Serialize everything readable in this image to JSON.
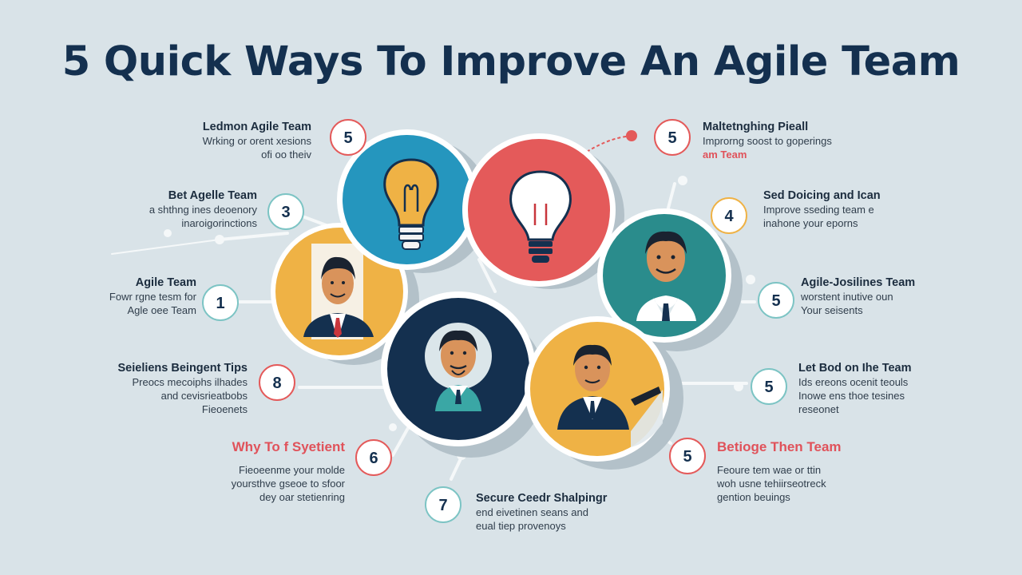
{
  "title": "5 Quick Ways To Improve An Agile Team",
  "colors": {
    "navy": "#14304f",
    "red": "#e45a5a",
    "teal": "#2a8c8c",
    "orange": "#efb245",
    "blue": "#2596be",
    "badge_border": "#7cc4c4",
    "bg": "#d9e3e8"
  },
  "badges": [
    "5",
    "5",
    "3",
    "4",
    "1",
    "5",
    "8",
    "5",
    "6",
    "5",
    "7"
  ],
  "blocks": {
    "top_left": {
      "heading": "Ledmon Agile Team",
      "lines": [
        "Wrking or orent xesions",
        "ofi oo theiv"
      ]
    },
    "top_right": {
      "heading": "Maltetnghing Pieall",
      "lines": [
        "Improrng soost to goperings"
      ],
      "accent": "am Team"
    },
    "left_2": {
      "heading": "Bet Agelle Team",
      "lines": [
        "a shthng ines deoenory",
        "inaroigorinctions"
      ]
    },
    "right_2": {
      "heading": "Sed Doicing and Ican",
      "lines": [
        "Improve sseding team e",
        "inahone your eporns"
      ]
    },
    "left_3": {
      "heading": "Agile Team",
      "lines": [
        "Fowr rgne tesm for",
        "Agle oee Team"
      ]
    },
    "right_3": {
      "heading": "Agile-Josilines Team",
      "lines": [
        "worstent inutive oun",
        "Your seisents"
      ]
    },
    "left_4": {
      "heading": "Seieliens Beingent Tips",
      "lines": [
        "Preocs mecoiphs ilhades",
        "and cevisrieatbobs",
        "Fieoenets"
      ]
    },
    "right_4": {
      "heading": "Let Bod on Ihe Team",
      "lines": [
        "Ids ereons ocenit teouls",
        "Inowe ens thoe tesines",
        "reseonet"
      ]
    },
    "left_5": {
      "heading": "Why To f Syetient",
      "lines": [
        "Fieoeenme your molde",
        "yoursthve gseoe to sfoor",
        "dey oar stetienring"
      ]
    },
    "right_5": {
      "heading": "Betioge Then Team",
      "lines": [
        "Feoure tem wae or ttin",
        "woh usne tehiirseotreck",
        "gention beuings"
      ]
    },
    "bottom": {
      "heading": "Secure Ceedr Shalpingr",
      "lines": [
        "end eivetinen seans and",
        "eual tiep provenoys"
      ]
    }
  }
}
